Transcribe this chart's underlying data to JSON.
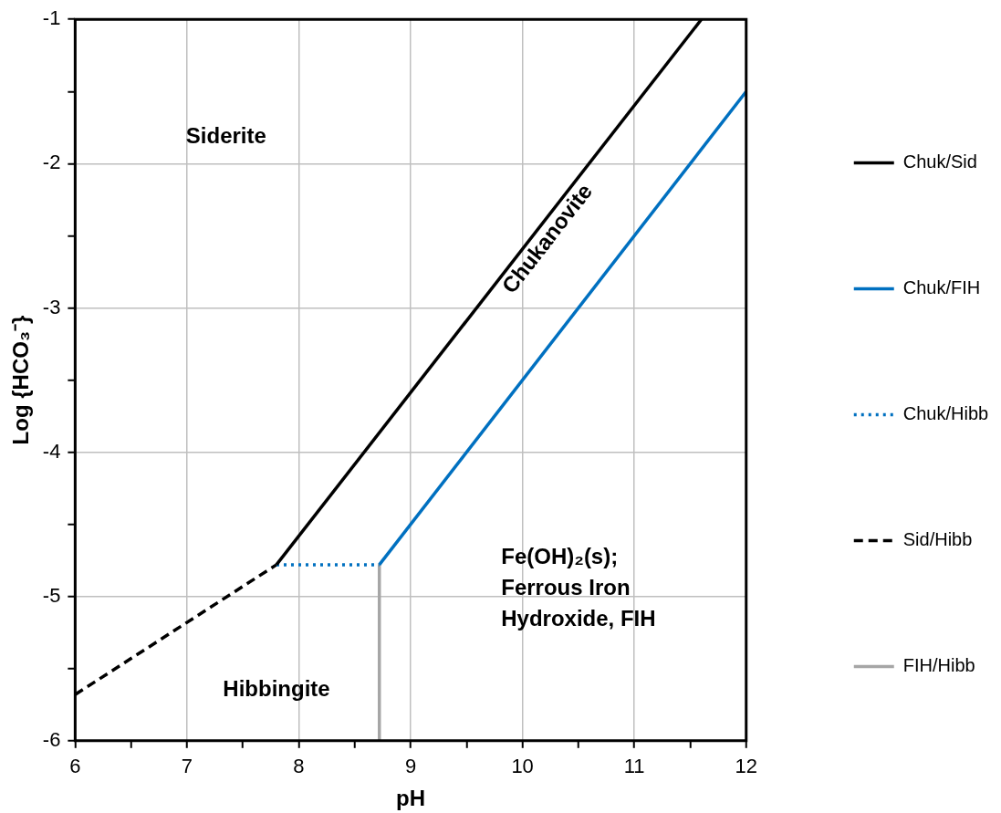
{
  "chart_data": {
    "type": "line",
    "xlabel": "pH",
    "ylabel": "Log {HCO₃⁻}",
    "xlim": [
      6,
      12
    ],
    "ylim": [
      -6,
      -1
    ],
    "xticks": [
      6,
      {
        "value": 6.5,
        "label": null
      },
      7,
      {
        "value": 7.5,
        "label": null
      },
      8,
      {
        "value": 8.5,
        "label": null
      },
      9,
      {
        "value": 9.5,
        "label": null
      },
      10,
      {
        "value": 10.5,
        "label": null
      },
      11,
      {
        "value": 11.5,
        "label": null
      },
      12
    ],
    "yticks": [
      -6,
      {
        "value": -5.5,
        "label": null
      },
      -5,
      {
        "value": -4.5,
        "label": null
      },
      -4,
      {
        "value": -3.5,
        "label": null
      },
      -3,
      {
        "value": -2.5,
        "label": null
      },
      -2,
      {
        "value": -1.5,
        "label": null
      },
      -1
    ],
    "grid": true,
    "legend": "right",
    "marker": "none",
    "series": [
      {
        "name": "Chuk/Sid",
        "color": "#000000",
        "line_style": "solid",
        "x": [
          7.8,
          11.6
        ],
        "values": [
          -4.78,
          -1
        ]
      },
      {
        "name": "Chuk/FIH",
        "color": "#0070c0",
        "line_style": "solid",
        "x": [
          8.72,
          12
        ],
        "values": [
          -4.78,
          -1.5
        ]
      },
      {
        "name": "Chuk/Hibb",
        "color": "#0070c0",
        "line_style": "dotted",
        "x": [
          7.8,
          8.72
        ],
        "values": [
          -4.78,
          -4.78
        ]
      },
      {
        "name": "Sid/Hibb",
        "color": "#000000",
        "line_style": "dashed",
        "x": [
          6,
          7.8
        ],
        "values": [
          -5.68,
          -4.78
        ]
      },
      {
        "name": "FIH/Hibb",
        "color": "#a6a6a6",
        "line_style": "solid",
        "x": [
          8.72,
          8.72
        ],
        "values": [
          -4.78,
          -6
        ]
      }
    ],
    "annotations": [
      "Siderite",
      "Chukanovite",
      "Fe(OH)₂(s);\nFerrous Iron\nHydroxide, FIH",
      "Hibbingite"
    ]
  }
}
